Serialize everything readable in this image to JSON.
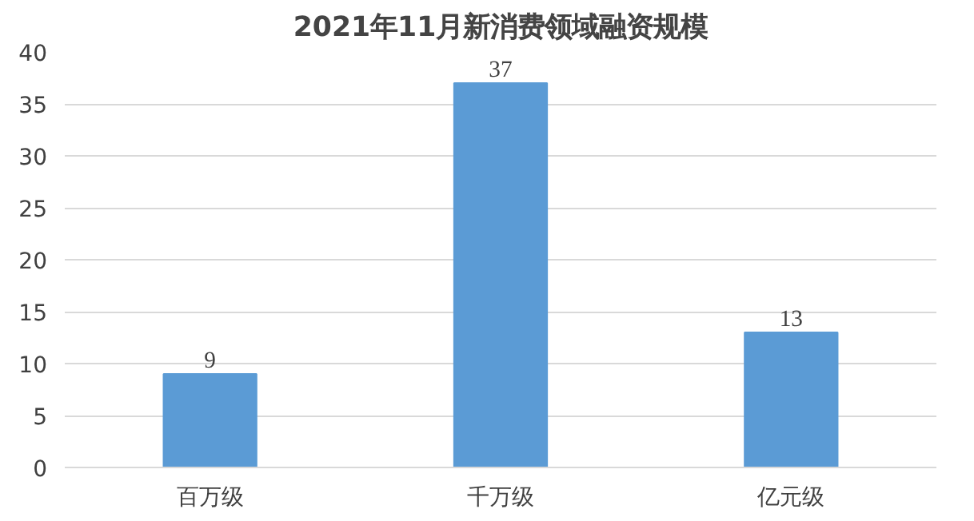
{
  "chart_data": {
    "type": "bar",
    "title": "2021年11月新消费领域融资规模",
    "categories": [
      "百万级",
      "千万级",
      "亿元级"
    ],
    "values": [
      9,
      37,
      13
    ],
    "color": "#5b9bd5",
    "ylim": [
      0,
      40
    ],
    "yticks": [
      0,
      5,
      10,
      15,
      20,
      25,
      30,
      35,
      40
    ],
    "grid": "y",
    "data_labels": true
  }
}
